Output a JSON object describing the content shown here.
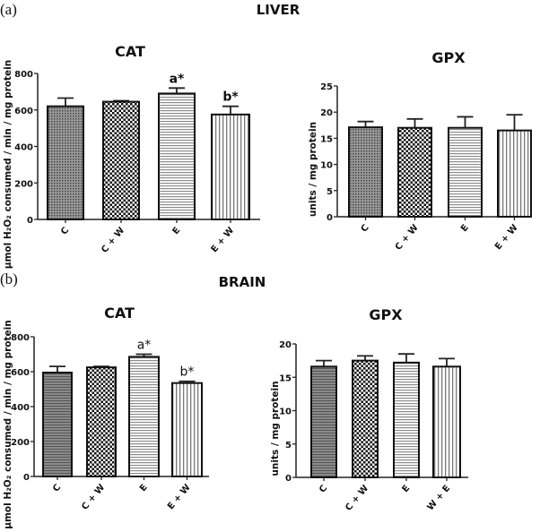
{
  "figure": {
    "panel_a_tag": "(a)",
    "panel_b_tag": "(b)",
    "section_a": "LIVER",
    "section_b": "BRAIN"
  },
  "chart_data": [
    {
      "type": "bar",
      "title": "CAT",
      "section": "LIVER",
      "ylabel": "μmol H₂O₂ consumed / min / mg protein",
      "categories": [
        "C",
        "C + W",
        "E",
        "E + W"
      ],
      "values": [
        620,
        645,
        690,
        575
      ],
      "errors": [
        45,
        5,
        30,
        45
      ],
      "annotations": [
        "",
        "",
        "a*",
        "b*"
      ],
      "ylim": [
        0,
        800
      ],
      "yticks": [
        "0",
        "200",
        "400",
        "600",
        "800"
      ],
      "patterns": [
        "dots",
        "checker",
        "hlines",
        "vlines"
      ]
    },
    {
      "type": "bar",
      "title": "GPX",
      "section": "LIVER",
      "ylabel": "units / mg protein",
      "categories": [
        "C",
        "C + W",
        "E",
        "E + W"
      ],
      "values": [
        17.1,
        17.0,
        17.0,
        16.5
      ],
      "errors": [
        1.1,
        1.7,
        2.1,
        3.0
      ],
      "annotations": [
        "",
        "",
        "",
        ""
      ],
      "ylim": [
        0,
        25
      ],
      "yticks": [
        "0",
        "5",
        "10",
        "15",
        "20",
        "25"
      ],
      "patterns": [
        "dots",
        "checker",
        "hlines",
        "vlines"
      ]
    },
    {
      "type": "bar",
      "title": "CAT",
      "section": "BRAIN",
      "ylabel": "μmol H₂O₂ consumed / min / mg protein",
      "categories": [
        "C",
        "C + W",
        "E",
        "E + W"
      ],
      "values": [
        595,
        625,
        685,
        535
      ],
      "errors": [
        35,
        5,
        15,
        10
      ],
      "annotations": [
        "",
        "",
        "a*",
        "b*"
      ],
      "ylim": [
        0,
        800
      ],
      "yticks": [
        "0",
        "200",
        "400",
        "600",
        "800"
      ],
      "patterns": [
        "hdots",
        "checker",
        "hlines",
        "vlines"
      ]
    },
    {
      "type": "bar",
      "title": "GPX",
      "section": "BRAIN",
      "ylabel": "units / mg protein",
      "categories": [
        "C",
        "C + W",
        "E",
        "W + E"
      ],
      "values": [
        16.6,
        17.5,
        17.2,
        16.6
      ],
      "errors": [
        0.9,
        0.7,
        1.3,
        1.2
      ],
      "annotations": [
        "",
        "",
        "",
        ""
      ],
      "ylim": [
        0,
        20
      ],
      "yticks": [
        "0",
        "5",
        "10",
        "15",
        "20"
      ],
      "patterns": [
        "hdots",
        "checker",
        "hlines",
        "vlines"
      ]
    }
  ]
}
